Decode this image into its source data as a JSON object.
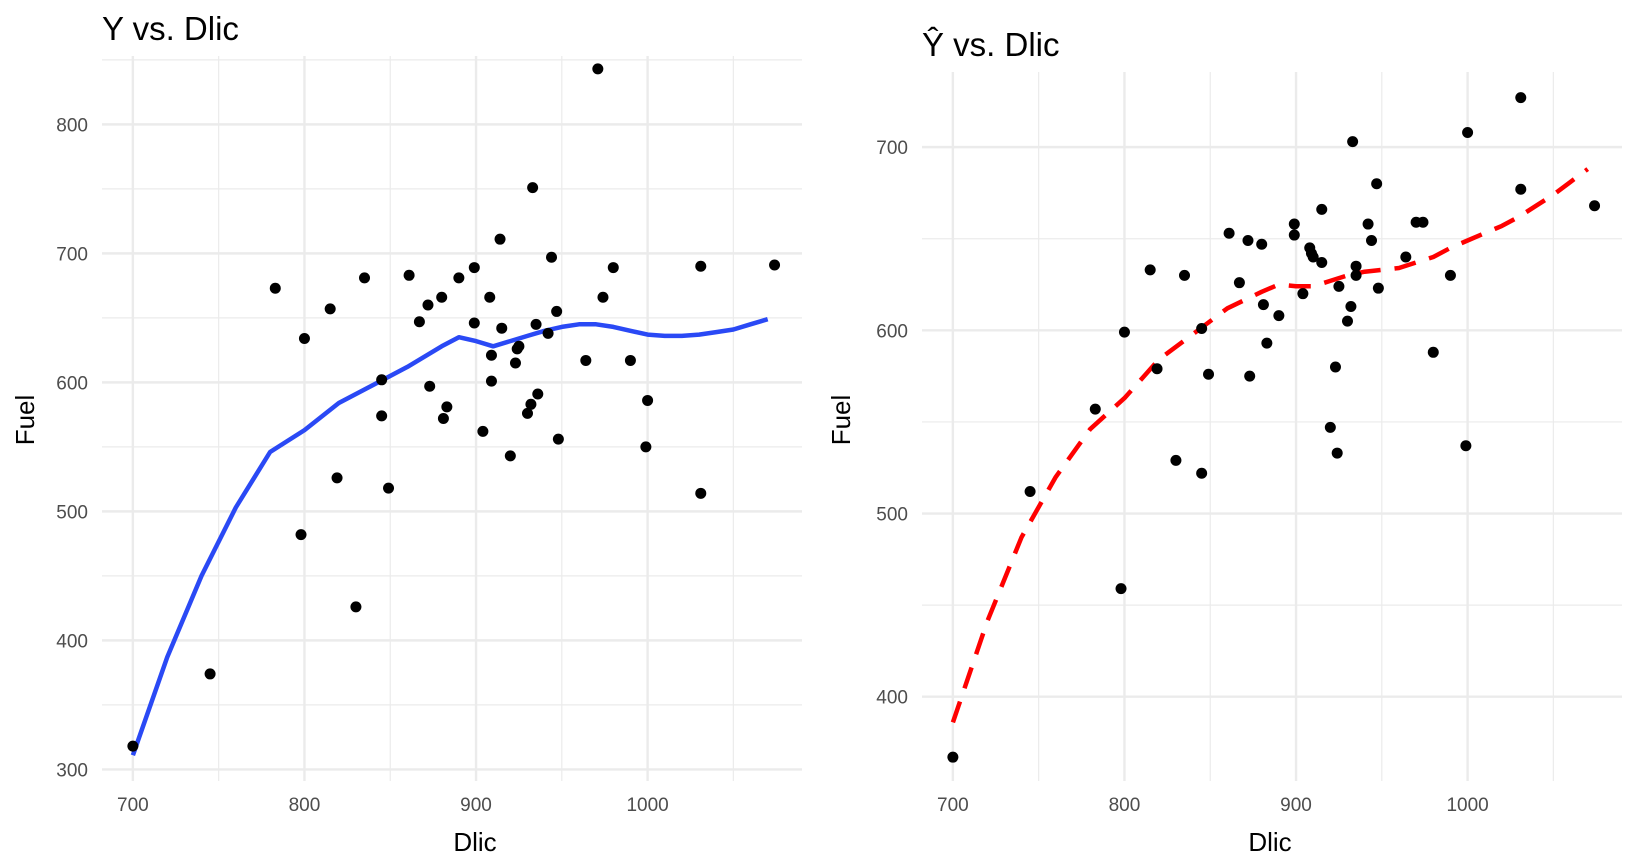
{
  "chart_data": [
    {
      "type": "scatter",
      "title": "Y vs. Dlic",
      "title_hat": false,
      "xlabel": "Dlic",
      "ylabel": "Fuel",
      "xlim": [
        682,
        1090
      ],
      "ylim": [
        291,
        853
      ],
      "xticks": [
        700,
        800,
        900,
        1000
      ],
      "yticks": [
        300,
        400,
        500,
        600,
        700,
        800
      ],
      "grid": true,
      "colors": {
        "points": "#000000",
        "line": "#2a49f5",
        "grid": "#ebebeb"
      },
      "points": [
        {
          "x": 700,
          "y": 318
        },
        {
          "x": 745,
          "y": 374
        },
        {
          "x": 783,
          "y": 673
        },
        {
          "x": 798,
          "y": 482
        },
        {
          "x": 800,
          "y": 634
        },
        {
          "x": 815,
          "y": 657
        },
        {
          "x": 819,
          "y": 526
        },
        {
          "x": 830,
          "y": 426
        },
        {
          "x": 835,
          "y": 681
        },
        {
          "x": 845,
          "y": 602
        },
        {
          "x": 845,
          "y": 574
        },
        {
          "x": 849,
          "y": 518
        },
        {
          "x": 861,
          "y": 683
        },
        {
          "x": 867,
          "y": 647
        },
        {
          "x": 872,
          "y": 660
        },
        {
          "x": 873,
          "y": 597
        },
        {
          "x": 880,
          "y": 666
        },
        {
          "x": 881,
          "y": 572
        },
        {
          "x": 883,
          "y": 581
        },
        {
          "x": 890,
          "y": 681
        },
        {
          "x": 899,
          "y": 689
        },
        {
          "x": 899,
          "y": 646
        },
        {
          "x": 904,
          "y": 562
        },
        {
          "x": 908,
          "y": 666
        },
        {
          "x": 909,
          "y": 621
        },
        {
          "x": 909,
          "y": 601
        },
        {
          "x": 914,
          "y": 711
        },
        {
          "x": 915,
          "y": 642
        },
        {
          "x": 920,
          "y": 543
        },
        {
          "x": 923,
          "y": 615
        },
        {
          "x": 924,
          "y": 626
        },
        {
          "x": 925,
          "y": 628
        },
        {
          "x": 930,
          "y": 576
        },
        {
          "x": 932,
          "y": 583
        },
        {
          "x": 933,
          "y": 751
        },
        {
          "x": 935,
          "y": 645
        },
        {
          "x": 936,
          "y": 591
        },
        {
          "x": 942,
          "y": 638
        },
        {
          "x": 944,
          "y": 697
        },
        {
          "x": 947,
          "y": 655
        },
        {
          "x": 948,
          "y": 556
        },
        {
          "x": 964,
          "y": 617
        },
        {
          "x": 971,
          "y": 843
        },
        {
          "x": 974,
          "y": 666
        },
        {
          "x": 980,
          "y": 689
        },
        {
          "x": 990,
          "y": 617
        },
        {
          "x": 999,
          "y": 550
        },
        {
          "x": 1000,
          "y": 586
        },
        {
          "x": 1031,
          "y": 690
        },
        {
          "x": 1031,
          "y": 514
        },
        {
          "x": 1074,
          "y": 691
        }
      ],
      "line": {
        "style": "solid",
        "x": [
          700,
          720,
          740,
          760,
          780,
          800,
          820,
          840,
          860,
          880,
          890,
          900,
          910,
          920,
          930,
          940,
          950,
          960,
          970,
          980,
          990,
          1000,
          1010,
          1020,
          1030,
          1040,
          1050,
          1060,
          1070
        ],
        "y": [
          311,
          387,
          450,
          503,
          546,
          563,
          584,
          598,
          612,
          628,
          635,
          632,
          628,
          632,
          636,
          640,
          643,
          645,
          645,
          643,
          640,
          637,
          636,
          636,
          637,
          639,
          641,
          645,
          649
        ]
      }
    },
    {
      "type": "scatter",
      "title": "Y vs. Dlic",
      "title_hat": true,
      "xlabel": "Dlic",
      "ylabel": "Fuel",
      "xlim": [
        682,
        1090
      ],
      "ylim": [
        354,
        741
      ],
      "xticks": [
        700,
        800,
        900,
        1000
      ],
      "yticks": [
        400,
        500,
        600,
        700
      ],
      "grid": true,
      "colors": {
        "points": "#000000",
        "line": "#ff0000",
        "grid": "#ebebeb"
      },
      "points": [
        {
          "x": 700,
          "y": 367
        },
        {
          "x": 745,
          "y": 512
        },
        {
          "x": 783,
          "y": 557
        },
        {
          "x": 798,
          "y": 459
        },
        {
          "x": 800,
          "y": 599
        },
        {
          "x": 815,
          "y": 633
        },
        {
          "x": 819,
          "y": 579
        },
        {
          "x": 830,
          "y": 529
        },
        {
          "x": 835,
          "y": 630
        },
        {
          "x": 845,
          "y": 601
        },
        {
          "x": 845,
          "y": 522
        },
        {
          "x": 849,
          "y": 576
        },
        {
          "x": 861,
          "y": 653
        },
        {
          "x": 867,
          "y": 626
        },
        {
          "x": 872,
          "y": 649
        },
        {
          "x": 873,
          "y": 575
        },
        {
          "x": 880,
          "y": 647
        },
        {
          "x": 881,
          "y": 614
        },
        {
          "x": 883,
          "y": 593
        },
        {
          "x": 890,
          "y": 608
        },
        {
          "x": 899,
          "y": 658
        },
        {
          "x": 899,
          "y": 652
        },
        {
          "x": 904,
          "y": 620
        },
        {
          "x": 908,
          "y": 645
        },
        {
          "x": 909,
          "y": 642
        },
        {
          "x": 910,
          "y": 640
        },
        {
          "x": 915,
          "y": 666
        },
        {
          "x": 915,
          "y": 637
        },
        {
          "x": 920,
          "y": 547
        },
        {
          "x": 923,
          "y": 580
        },
        {
          "x": 924,
          "y": 533
        },
        {
          "x": 925,
          "y": 624
        },
        {
          "x": 930,
          "y": 605
        },
        {
          "x": 932,
          "y": 613
        },
        {
          "x": 933,
          "y": 703
        },
        {
          "x": 935,
          "y": 635
        },
        {
          "x": 935,
          "y": 630
        },
        {
          "x": 942,
          "y": 658
        },
        {
          "x": 944,
          "y": 649
        },
        {
          "x": 947,
          "y": 680
        },
        {
          "x": 948,
          "y": 623
        },
        {
          "x": 964,
          "y": 640
        },
        {
          "x": 970,
          "y": 659
        },
        {
          "x": 974,
          "y": 659
        },
        {
          "x": 980,
          "y": 588
        },
        {
          "x": 990,
          "y": 630
        },
        {
          "x": 999,
          "y": 537
        },
        {
          "x": 1000,
          "y": 708
        },
        {
          "x": 1031,
          "y": 727
        },
        {
          "x": 1031,
          "y": 677
        },
        {
          "x": 1074,
          "y": 668
        }
      ],
      "line": {
        "style": "dashed",
        "x": [
          700,
          720,
          740,
          760,
          780,
          800,
          820,
          840,
          860,
          880,
          890,
          900,
          910,
          920,
          930,
          940,
          950,
          960,
          970,
          980,
          990,
          1000,
          1010,
          1020,
          1030,
          1040,
          1050,
          1060,
          1070
        ],
        "y": [
          386,
          441,
          487,
          520,
          546,
          563,
          584,
          598,
          612,
          621,
          625,
          624,
          624,
          627,
          630,
          632,
          633,
          634,
          637,
          640,
          645,
          649,
          653,
          657,
          662,
          668,
          674,
          681,
          688
        ]
      }
    }
  ]
}
